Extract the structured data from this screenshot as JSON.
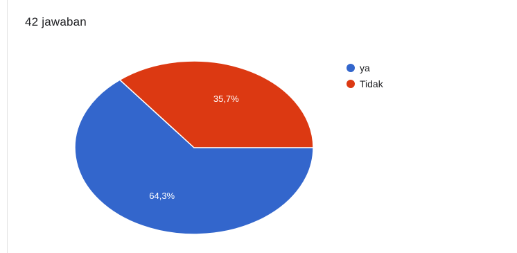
{
  "response_count": "42 jawaban",
  "chart_data": {
    "type": "pie",
    "categories": [
      "ya",
      "Tidak"
    ],
    "values": [
      64.3,
      35.7
    ],
    "data_labels": [
      "64,3%",
      "35,7%"
    ],
    "colors": [
      "#3366cc",
      "#dc3912"
    ],
    "legend_position": "right"
  }
}
